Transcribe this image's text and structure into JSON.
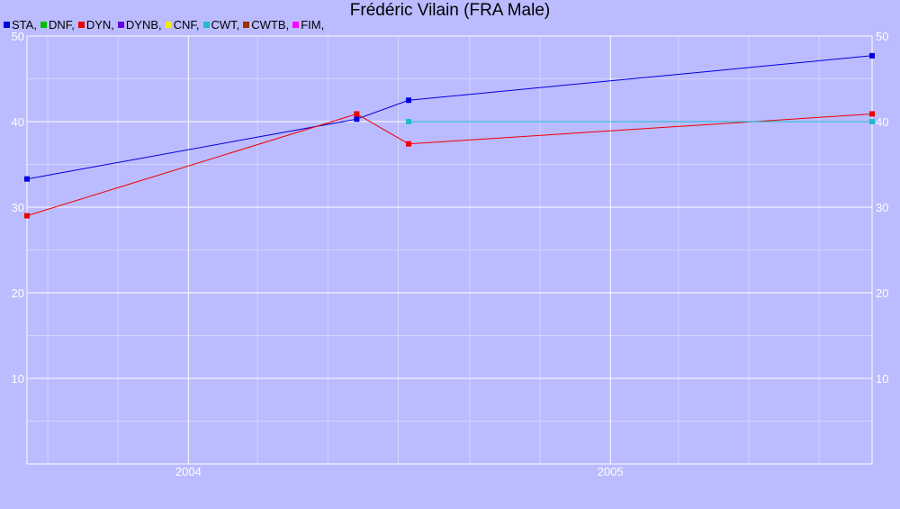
{
  "chart_data": {
    "type": "line",
    "title": "Frédéric Vilain (FRA Male)",
    "xlabel": "",
    "ylabel": "",
    "xlim": [
      "2003-08-14",
      "2005-08-16"
    ],
    "ylim": [
      0,
      50
    ],
    "grid": true,
    "legend_position": "top-left",
    "y_ticks": [
      10,
      20,
      30,
      40,
      50
    ],
    "x_ticks": [
      {
        "date": "2004-01-01",
        "label": "2004"
      },
      {
        "date": "2005-01-01",
        "label": "2005"
      }
    ],
    "x_minor_ticks": [
      "2003-09-01",
      "2003-11-01",
      "2004-03-01",
      "2004-05-01",
      "2004-07-01",
      "2004-09-01",
      "2004-11-01",
      "2005-03-01",
      "2005-05-01",
      "2005-07-01"
    ],
    "legend": [
      {
        "label": "STA,",
        "color": "#0000dd"
      },
      {
        "label": "DNF,",
        "color": "#00bb00"
      },
      {
        "label": "DYN,",
        "color": "#ee0000"
      },
      {
        "label": "DYNB,",
        "color": "#6600dd"
      },
      {
        "label": "CNF,",
        "color": "#eeee00"
      },
      {
        "label": "CWT,",
        "color": "#22bbcc"
      },
      {
        "label": "CWTB,",
        "color": "#993300"
      },
      {
        "label": "FIM,",
        "color": "#ff00ff"
      }
    ],
    "series": [
      {
        "name": "STA",
        "color": "#0000dd",
        "points": [
          {
            "x": "2003-08-14",
            "y": 33.3
          },
          {
            "x": "2004-05-26",
            "y": 40.3
          },
          {
            "x": "2004-07-10",
            "y": 42.5
          },
          {
            "x": "2005-08-16",
            "y": 47.7
          }
        ]
      },
      {
        "name": "DYN",
        "color": "#ee0000",
        "points": [
          {
            "x": "2003-08-14",
            "y": 29.0
          },
          {
            "x": "2004-05-26",
            "y": 40.9
          },
          {
            "x": "2004-07-10",
            "y": 37.4
          },
          {
            "x": "2005-08-16",
            "y": 40.9
          }
        ]
      },
      {
        "name": "CWT",
        "color": "#22bbcc",
        "points": [
          {
            "x": "2004-07-10",
            "y": 40.0
          },
          {
            "x": "2005-08-16",
            "y": 40.0
          }
        ]
      }
    ]
  }
}
